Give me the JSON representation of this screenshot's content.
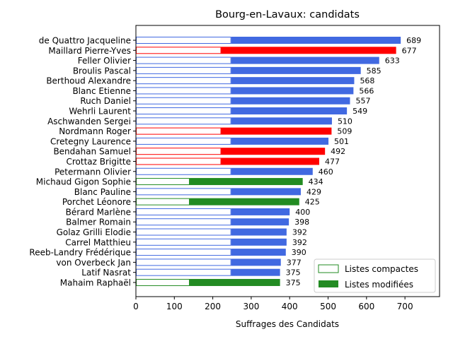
{
  "chart_data": {
    "type": "bar",
    "orientation": "horizontal",
    "title": "Bourg-en-Lavaux: candidats",
    "xlabel": "Suffrages des Candidats",
    "ylabel": "",
    "xlim": [
      0,
      790
    ],
    "xticks": [
      "0",
      "100",
      "200",
      "300",
      "400",
      "500",
      "600",
      "700"
    ],
    "grid": false,
    "legend_position": "lower-right",
    "colors": {
      "blue": "#4169e1",
      "red": "#ff0000",
      "green": "#228b22"
    },
    "series": [
      {
        "name": "Listes compactes"
      },
      {
        "name": "Listes modifiées"
      }
    ],
    "candidates": [
      {
        "name": "de Quattro Jacqueline",
        "total": 689,
        "compact": 248,
        "color": "blue"
      },
      {
        "name": "Maillard Pierre-Yves",
        "total": 677,
        "compact": 222,
        "color": "red"
      },
      {
        "name": "Feller Olivier",
        "total": 633,
        "compact": 248,
        "color": "blue"
      },
      {
        "name": "Broulis Pascal",
        "total": 585,
        "compact": 248,
        "color": "blue"
      },
      {
        "name": "Berthoud Alexandre",
        "total": 568,
        "compact": 248,
        "color": "blue"
      },
      {
        "name": "Blanc Etienne",
        "total": 566,
        "compact": 248,
        "color": "blue"
      },
      {
        "name": "Ruch Daniel",
        "total": 557,
        "compact": 248,
        "color": "blue"
      },
      {
        "name": "Wehrli Laurent",
        "total": 549,
        "compact": 248,
        "color": "blue"
      },
      {
        "name": "Aschwanden Sergei",
        "total": 510,
        "compact": 248,
        "color": "blue"
      },
      {
        "name": "Nordmann Roger",
        "total": 509,
        "compact": 222,
        "color": "red"
      },
      {
        "name": "Cretegny Laurence",
        "total": 501,
        "compact": 248,
        "color": "blue"
      },
      {
        "name": "Bendahan Samuel",
        "total": 492,
        "compact": 222,
        "color": "red"
      },
      {
        "name": "Crottaz Brigitte",
        "total": 477,
        "compact": 222,
        "color": "red"
      },
      {
        "name": "Petermann Olivier",
        "total": 460,
        "compact": 248,
        "color": "blue"
      },
      {
        "name": "Michaud Gigon Sophie",
        "total": 434,
        "compact": 140,
        "color": "green"
      },
      {
        "name": "Blanc Pauline",
        "total": 429,
        "compact": 248,
        "color": "blue"
      },
      {
        "name": "Porchet Léonore",
        "total": 425,
        "compact": 140,
        "color": "green"
      },
      {
        "name": "Bérard Marlène",
        "total": 400,
        "compact": 248,
        "color": "blue"
      },
      {
        "name": "Balmer Romain",
        "total": 398,
        "compact": 248,
        "color": "blue"
      },
      {
        "name": "Golaz Grilli Elodie",
        "total": 392,
        "compact": 248,
        "color": "blue"
      },
      {
        "name": "Carrel Matthieu",
        "total": 392,
        "compact": 248,
        "color": "blue"
      },
      {
        "name": "Reeb-Landry Frédérique",
        "total": 390,
        "compact": 248,
        "color": "blue"
      },
      {
        "name": "von Overbeck Jan",
        "total": 377,
        "compact": 248,
        "color": "blue"
      },
      {
        "name": "Latif Nasrat",
        "total": 375,
        "compact": 248,
        "color": "blue"
      },
      {
        "name": "Mahaim Raphaël",
        "total": 375,
        "compact": 140,
        "color": "green"
      }
    ]
  }
}
